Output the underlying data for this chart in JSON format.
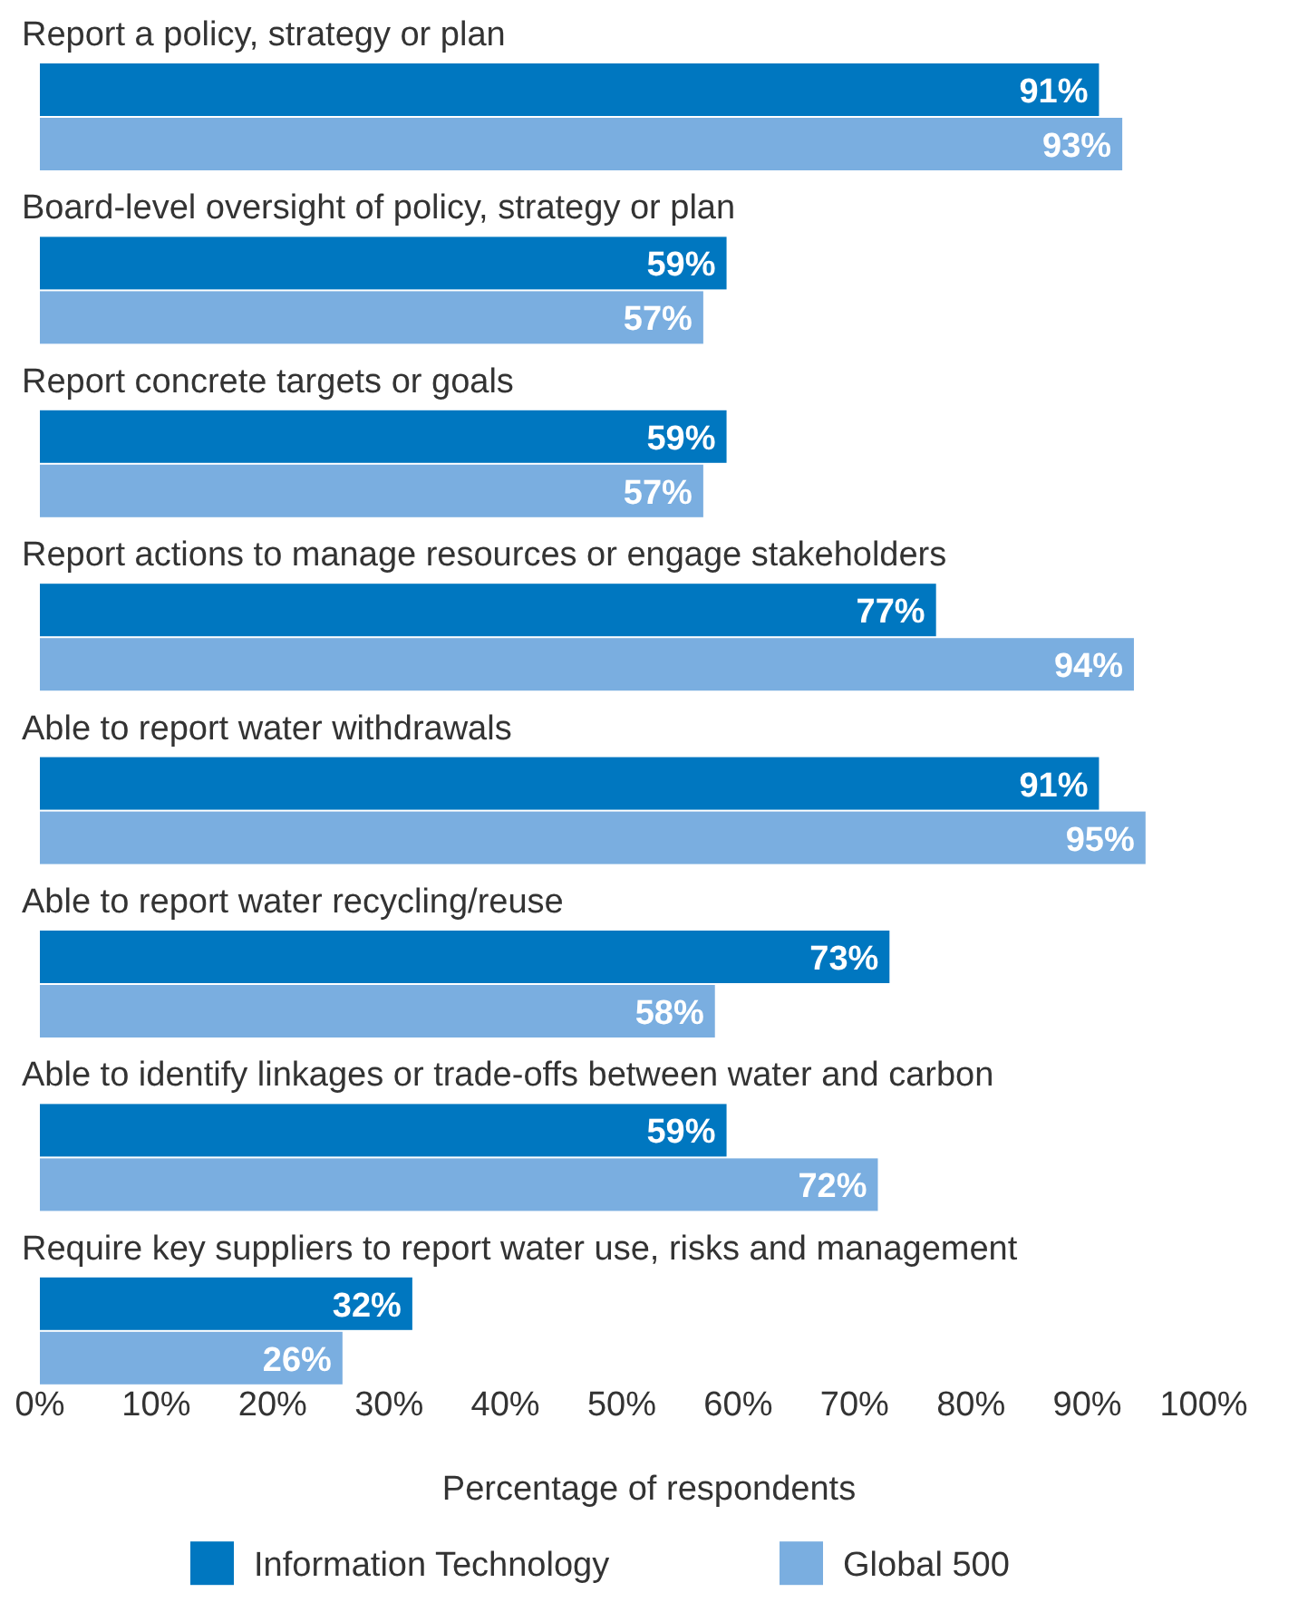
{
  "chart_data": {
    "type": "bar",
    "orientation": "horizontal",
    "xlabel": "Percentage of respondents",
    "categories": [
      "Report a policy, strategy or plan",
      "Board-level oversight of policy, strategy or plan",
      "Report concrete targets or goals",
      "Report actions to manage resources or engage stakeholders",
      "Able to report water withdrawals",
      "Able to report water recycling/reuse",
      "Able to identify linkages or trade-offs between water and carbon",
      "Require key suppliers to report water use, risks and management"
    ],
    "series": [
      {
        "name": "Information Technology",
        "color": "#0077c0",
        "values": [
          91,
          59,
          59,
          77,
          91,
          73,
          59,
          32
        ],
        "value_labels": [
          "91%",
          "59%",
          "59%",
          "77%",
          "91%",
          "73%",
          "59%",
          "32%"
        ]
      },
      {
        "name": "Global 500",
        "color": "#7aaee0",
        "values": [
          93,
          57,
          57,
          94,
          95,
          58,
          72,
          26
        ],
        "value_labels": [
          "93%",
          "57%",
          "57%",
          "94%",
          "95%",
          "58%",
          "72%",
          "26%"
        ]
      }
    ],
    "xlim": [
      0,
      100
    ],
    "xticks": [
      {
        "value": 0,
        "label": "0%"
      },
      {
        "value": 10,
        "label": "10%"
      },
      {
        "value": 20,
        "label": "20%"
      },
      {
        "value": 30,
        "label": "30%"
      },
      {
        "value": 40,
        "label": "40%"
      },
      {
        "value": 50,
        "label": "50%"
      },
      {
        "value": 60,
        "label": "60%"
      },
      {
        "value": 70,
        "label": "70%"
      },
      {
        "value": 80,
        "label": "80%"
      },
      {
        "value": 90,
        "label": "90%"
      },
      {
        "value": 100,
        "label": "100%"
      }
    ],
    "grid": false,
    "legend": "bottom"
  }
}
